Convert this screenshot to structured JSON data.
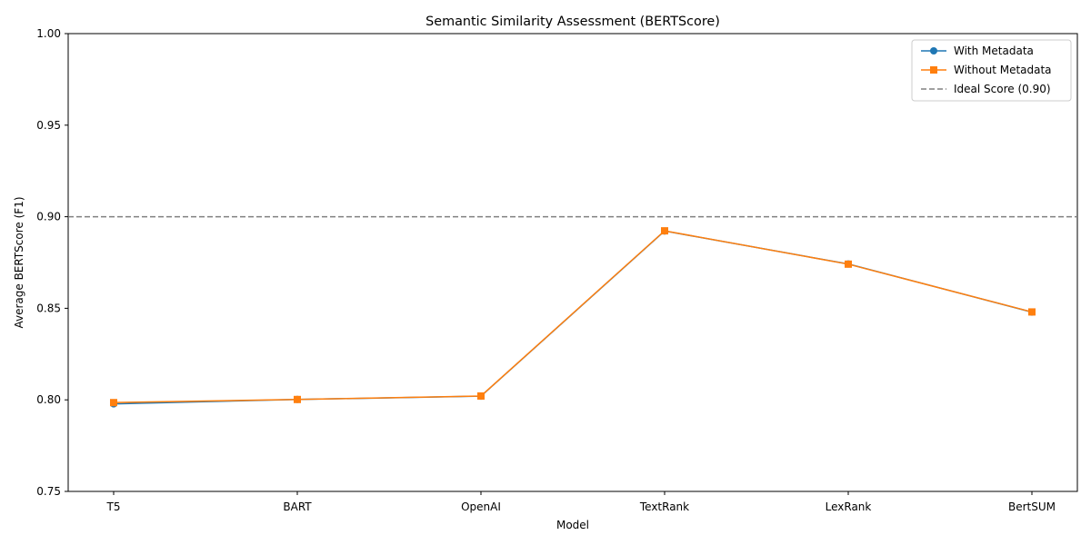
{
  "chart_data": {
    "type": "line",
    "title": "Semantic Similarity Assessment (BERTScore)",
    "xlabel": "Model",
    "ylabel": "Average BERTScore (F1)",
    "categories": [
      "T5",
      "BART",
      "OpenAI",
      "TextRank",
      "LexRank",
      "BertSUM"
    ],
    "ylim": [
      0.75,
      1.0
    ],
    "yticks": [
      0.75,
      0.8,
      0.85,
      0.9,
      0.95,
      1.0
    ],
    "ytick_labels": [
      "0.75",
      "0.80",
      "0.85",
      "0.90",
      "0.95",
      "1.00"
    ],
    "grid": false,
    "legend_position": "top-right",
    "series": [
      {
        "name": "With Metadata",
        "values": [
          0.7978,
          0.8002,
          0.802,
          0.8922,
          0.8742,
          0.8479
        ],
        "color": "#1f77b4",
        "marker": "circle"
      },
      {
        "name": "Without Metadata",
        "values": [
          0.7985,
          0.8002,
          0.8021,
          0.8923,
          0.8741,
          0.848
        ],
        "color": "#ff7f0e",
        "marker": "square"
      }
    ],
    "reference_line": {
      "name": "Ideal Score (0.90)",
      "value": 0.9,
      "color": "#808080",
      "style": "dashed"
    }
  }
}
